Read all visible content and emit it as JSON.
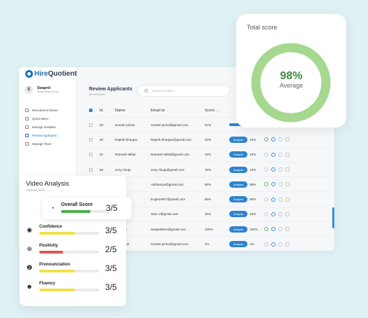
{
  "app": {
    "logo": {
      "brand_a": "Hire",
      "brand_b": "Quotient"
    },
    "user": {
      "initial": "S",
      "name": "Swapnil",
      "email": "swapnil@gmail.com"
    },
    "nav": [
      {
        "label": "Recruitment Drives",
        "active": false
      },
      {
        "label": "Quick Menu",
        "active": false
      },
      {
        "label": "Manage Invitation",
        "active": false
      },
      {
        "label": "Review Applicants",
        "active": true
      },
      {
        "label": "Manage Team",
        "active": false
      }
    ],
    "page_title": "Review Applicants",
    "page_subtitle": "68 Candidates",
    "search_placeholder": "Search text filters",
    "columns": {
      "id": "Id",
      "name": "Name",
      "email": "Email id",
      "score": "Score"
    },
    "rows": [
      {
        "id": "25",
        "name": "Sunder pichai",
        "email": "Sunder.pichai@gmail.com",
        "score": "51%",
        "action": "",
        "pct": ""
      },
      {
        "id": "30",
        "name": "Rajesh bhargav",
        "email": "Rajesh bhargav@gmail.com",
        "score": "10%",
        "action": "Analyse",
        "pct": "10%"
      },
      {
        "id": "22",
        "name": "Ramesh Mittal",
        "email": "Ramesh Mittal@gmail.com",
        "score": "10%",
        "action": "Analyse",
        "pct": "10%"
      },
      {
        "id": "56",
        "name": "Jony Ahuja",
        "email": "Jony Ahuja@gmail.com",
        "score": "10%",
        "action": "Analyse",
        "pct": "10%"
      },
      {
        "id": "",
        "name": "warya",
        "email": "Aishwarya@gmail.com",
        "score": "80%",
        "action": "Analyse",
        "pct": "80%"
      },
      {
        "id": "",
        "name": "ons",
        "email": "Eugene007@gmail.com",
        "score": "90%",
        "action": "Analyse",
        "pct": "90%"
      },
      {
        "id": "",
        "name": "arthveer",
        "email": "Sam.V@gmail.com",
        "score": "10%",
        "action": "Analyse",
        "pct": "10%"
      },
      {
        "id": "",
        "name": "pnil Deo",
        "email": "SwapnilDeo@gmail.com",
        "score": "100%",
        "action": "Analyse",
        "pct": "100%"
      },
      {
        "id": "",
        "name": "der pichai",
        "email": "Sunder.pichai@gmail.com",
        "score": "4%",
        "action": "Analyse",
        "pct": "4%"
      }
    ]
  },
  "total_score": {
    "title": "Total score",
    "value": "98%",
    "label": "Average",
    "fraction": 0.98,
    "color": "#a6d88f",
    "track": "#d8eed0"
  },
  "video_analysis": {
    "title": "Video Analysis",
    "subtitle": "Add text here .......",
    "overall": {
      "label": "Overall Score",
      "score": "3/5",
      "fraction": 0.6,
      "color": "#4cae4c",
      "icon": "gauge-icon"
    },
    "metrics": [
      {
        "label": "Confidence",
        "score": "3/5",
        "fraction": 0.6,
        "color": "#f2e04a",
        "icon": "eye-icon"
      },
      {
        "label": "Positivity",
        "score": "2/5",
        "fraction": 0.4,
        "color": "#e05555",
        "icon": "plus-icon"
      },
      {
        "label": "Pronounciation",
        "score": "3/5",
        "fraction": 0.6,
        "color": "#f2e04a",
        "icon": "speech-icon"
      },
      {
        "label": "Fluency",
        "score": "3/5",
        "fraction": 0.6,
        "color": "#f2e04a",
        "icon": "talking-head-icon"
      }
    ]
  }
}
